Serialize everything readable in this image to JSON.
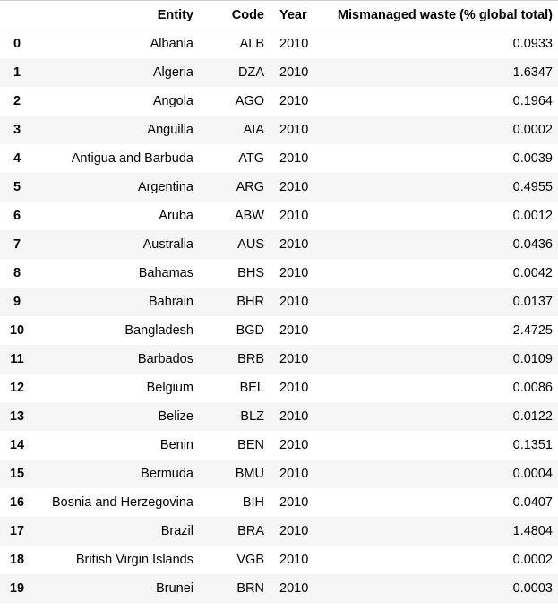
{
  "table": {
    "columns": {
      "index": "",
      "entity": "Entity",
      "code": "Code",
      "year": "Year",
      "value": "Mismanaged waste (% global total)"
    },
    "rows": [
      {
        "index": "0",
        "entity": "Albania",
        "code": "ALB",
        "year": "2010",
        "value": "0.0933"
      },
      {
        "index": "1",
        "entity": "Algeria",
        "code": "DZA",
        "year": "2010",
        "value": "1.6347"
      },
      {
        "index": "2",
        "entity": "Angola",
        "code": "AGO",
        "year": "2010",
        "value": "0.1964"
      },
      {
        "index": "3",
        "entity": "Anguilla",
        "code": "AIA",
        "year": "2010",
        "value": "0.0002"
      },
      {
        "index": "4",
        "entity": "Antigua and Barbuda",
        "code": "ATG",
        "year": "2010",
        "value": "0.0039"
      },
      {
        "index": "5",
        "entity": "Argentina",
        "code": "ARG",
        "year": "2010",
        "value": "0.4955"
      },
      {
        "index": "6",
        "entity": "Aruba",
        "code": "ABW",
        "year": "2010",
        "value": "0.0012"
      },
      {
        "index": "7",
        "entity": "Australia",
        "code": "AUS",
        "year": "2010",
        "value": "0.0436"
      },
      {
        "index": "8",
        "entity": "Bahamas",
        "code": "BHS",
        "year": "2010",
        "value": "0.0042"
      },
      {
        "index": "9",
        "entity": "Bahrain",
        "code": "BHR",
        "year": "2010",
        "value": "0.0137"
      },
      {
        "index": "10",
        "entity": "Bangladesh",
        "code": "BGD",
        "year": "2010",
        "value": "2.4725"
      },
      {
        "index": "11",
        "entity": "Barbados",
        "code": "BRB",
        "year": "2010",
        "value": "0.0109"
      },
      {
        "index": "12",
        "entity": "Belgium",
        "code": "BEL",
        "year": "2010",
        "value": "0.0086"
      },
      {
        "index": "13",
        "entity": "Belize",
        "code": "BLZ",
        "year": "2010",
        "value": "0.0122"
      },
      {
        "index": "14",
        "entity": "Benin",
        "code": "BEN",
        "year": "2010",
        "value": "0.1351"
      },
      {
        "index": "15",
        "entity": "Bermuda",
        "code": "BMU",
        "year": "2010",
        "value": "0.0004"
      },
      {
        "index": "16",
        "entity": "Bosnia and Herzegovina",
        "code": "BIH",
        "year": "2010",
        "value": "0.0407"
      },
      {
        "index": "17",
        "entity": "Brazil",
        "code": "BRA",
        "year": "2010",
        "value": "1.4804"
      },
      {
        "index": "18",
        "entity": "British Virgin Islands",
        "code": "VGB",
        "year": "2010",
        "value": "0.0002"
      },
      {
        "index": "19",
        "entity": "Brunei",
        "code": "BRN",
        "year": "2010",
        "value": "0.0003"
      }
    ]
  }
}
